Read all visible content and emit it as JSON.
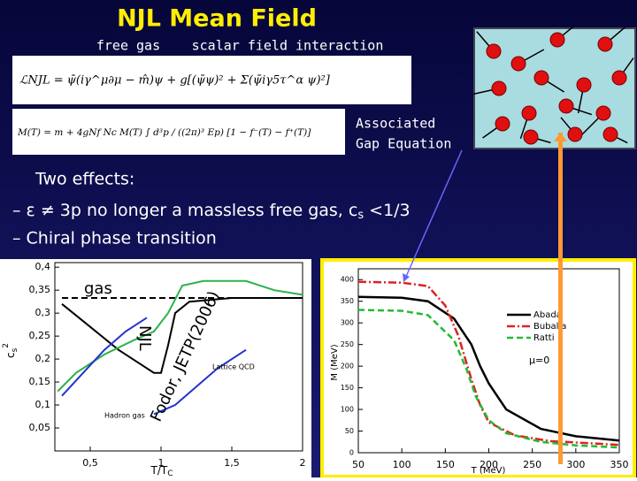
{
  "slide": {
    "title": "NJL Mean Field",
    "label_free_gas": "free gas",
    "label_scalar": "scalar field interaction",
    "equation_lagrangian": "ℒNJL = ψ̄(iγ^μ∂μ − m̂)ψ + g[(ψ̄ψ)² + Σ(ψ̄iγ5τ^α ψ)²]",
    "equation_gap": "M(T) = m + 4gNf Nc M(T) ∫ d³p / ((2π)³ Ep) [1 − f⁻(T) − f⁺(T)]",
    "gap_label_line1": "Associated",
    "gap_label_line2": "Gap Equation",
    "effects_title": "Two effects:",
    "effect1_a": "– ε ≠ 3p no longer a massless free gas,  c",
    "effect1_sub": "s",
    "effect1_b": " <1/3",
    "effect2": "– Chiral phase transition"
  },
  "chart_data": [
    {
      "type": "line",
      "ylabel": "c",
      "ylabel_sub": "s",
      "ylabel_sup": "2",
      "xlabel": "T/T",
      "xlabel_sub": "C",
      "annotations": [
        "gas",
        "NJL",
        "Fodor, JETP(2006)",
        "Lattice QCD",
        "Hadron gas"
      ],
      "xlim": [
        0.25,
        2
      ],
      "ylim": [
        0,
        0.41
      ],
      "xticks": [
        {
          "value": 0.5,
          "label": "0,5"
        },
        1,
        {
          "value": 1.5,
          "label": "1,5"
        },
        2
      ],
      "yticks": [
        {
          "value": 0.05,
          "label": "0,05"
        },
        {
          "value": 0.1,
          "label": "0,1"
        },
        {
          "value": 0.15,
          "label": "0,15"
        },
        {
          "value": 0.2,
          "label": "0,2"
        },
        {
          "value": 0.25,
          "label": "0,25"
        },
        {
          "value": 0.3,
          "label": "0,3"
        },
        {
          "value": 0.35,
          "label": "0,35"
        },
        {
          "value": 0.4,
          "label": "0,4"
        }
      ],
      "series": [
        {
          "color": "#000000",
          "dash": "dash",
          "x": [
            0.3,
            1.5
          ],
          "values": [
            0.333,
            0.333
          ]
        },
        {
          "color": "#000000",
          "dash": "solid",
          "x": [
            0.3,
            0.5,
            0.7,
            0.85,
            0.95,
            1.0,
            1.05,
            1.1,
            1.2,
            1.5,
            2.0
          ],
          "values": [
            0.32,
            0.27,
            0.22,
            0.19,
            0.17,
            0.17,
            0.23,
            0.3,
            0.325,
            0.333,
            0.333
          ]
        },
        {
          "color": "#2bb24c",
          "dash": "solid",
          "x": [
            0.27,
            0.4,
            0.6,
            0.8,
            0.95,
            1.05,
            1.15,
            1.3,
            1.6,
            1.8,
            2.0
          ],
          "values": [
            0.13,
            0.17,
            0.21,
            0.24,
            0.26,
            0.3,
            0.36,
            0.37,
            0.37,
            0.35,
            0.34
          ]
        },
        {
          "color": "#2233cc",
          "dash": "solid",
          "x": [
            0.3,
            0.45,
            0.6,
            0.75,
            0.9
          ],
          "values": [
            0.12,
            0.17,
            0.22,
            0.26,
            0.29
          ]
        },
        {
          "color": "#2233cc",
          "dash": "solid",
          "x": [
            0.95,
            1.1,
            1.25,
            1.4,
            1.6
          ],
          "values": [
            0.08,
            0.1,
            0.14,
            0.18,
            0.22
          ]
        }
      ]
    },
    {
      "type": "line",
      "ylabel": "M (MeV)",
      "xlabel": "T (MeV)",
      "annotation": "μ=0",
      "xlim": [
        50,
        350
      ],
      "ylim": [
        0,
        425
      ],
      "xticks": [
        50,
        100,
        150,
        200,
        250,
        300,
        350
      ],
      "yticks": [
        0,
        50,
        100,
        150,
        200,
        250,
        300,
        350,
        400
      ],
      "series": [
        {
          "name": "Abada",
          "color": "#000000",
          "dash": "solid",
          "x": [
            50,
            100,
            130,
            160,
            180,
            190,
            200,
            220,
            260,
            300,
            350
          ],
          "values": [
            360,
            358,
            350,
            310,
            250,
            200,
            160,
            100,
            55,
            38,
            28
          ]
        },
        {
          "name": "Buballa",
          "color": "#dd2222",
          "dash": "dashdot",
          "x": [
            50,
            100,
            130,
            150,
            165,
            180,
            190,
            200,
            230,
            270,
            350
          ],
          "values": [
            395,
            393,
            385,
            340,
            270,
            170,
            110,
            70,
            40,
            27,
            18
          ]
        },
        {
          "name": "Ratti",
          "color": "#22bb33",
          "dash": "dash",
          "x": [
            50,
            100,
            130,
            160,
            175,
            185,
            200,
            220,
            260,
            300,
            350
          ],
          "values": [
            330,
            328,
            318,
            260,
            190,
            130,
            75,
            45,
            25,
            17,
            12
          ]
        }
      ]
    }
  ]
}
